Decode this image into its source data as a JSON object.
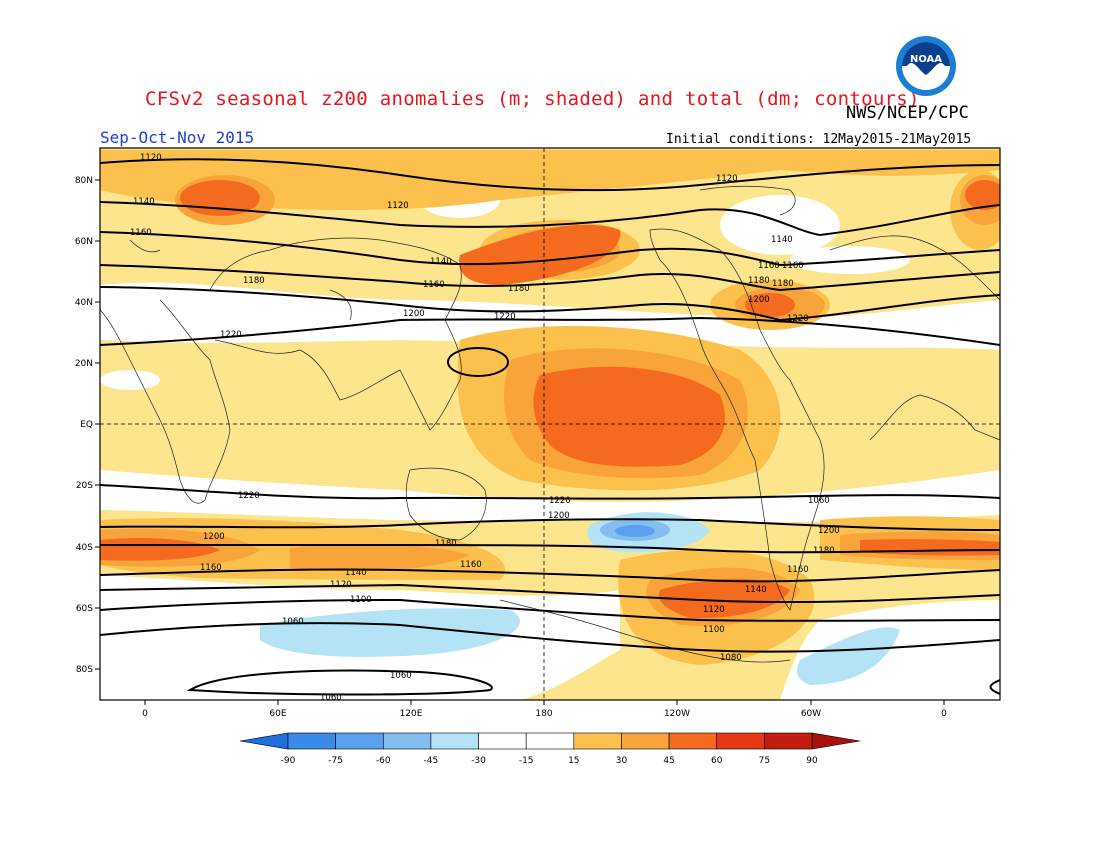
{
  "header": {
    "title": "CFSv2 seasonal z200 anomalies (m; shaded) and total (dm; contours)",
    "agency": "NWS/NCEP/CPC",
    "season": "Sep-Oct-Nov 2015",
    "initial_conditions": "Initial conditions: 12May2015-21May2015"
  },
  "logo": {
    "icon": "noaa-logo-icon",
    "text": "NOAA"
  },
  "axes": {
    "lat_labels": [
      "80N",
      "60N",
      "40N",
      "20N",
      "EQ",
      "20S",
      "40S",
      "60S",
      "80S"
    ],
    "lon_labels": [
      "0",
      "60E",
      "120E",
      "180",
      "120W",
      "60W",
      "0"
    ]
  },
  "colorbar": {
    "tick_labels": [
      "-90",
      "-75",
      "-60",
      "-45",
      "-30",
      "-15",
      "15",
      "30",
      "45",
      "60",
      "75",
      "90"
    ],
    "colors": [
      "#1e6fe0",
      "#3a8ae8",
      "#5aa0ee",
      "#84bdf0",
      "#b3e3f5",
      "#ffffff",
      "#fde58e",
      "#fcc14c",
      "#f9a43a",
      "#f46a1e",
      "#e63a16",
      "#c31d12"
    ]
  },
  "contour_labels": [
    "1120",
    "1140",
    "1160",
    "1120",
    "1180",
    "1140",
    "1160",
    "1180",
    "1200",
    "1220",
    "1120",
    "1140",
    "1160",
    "1180",
    "1200",
    "1220",
    "1220",
    "1220",
    "1200",
    "1180",
    "1160",
    "1220",
    "1200",
    "1180",
    "1160",
    "1200",
    "1160",
    "1140",
    "1120",
    "1100",
    "1060",
    "1060",
    "1060",
    "1140",
    "1120",
    "1100",
    "1080",
    "1180",
    "1160",
    "1060"
  ],
  "colors": {
    "title": "#e8141c",
    "season": "#1f3fd6"
  }
}
